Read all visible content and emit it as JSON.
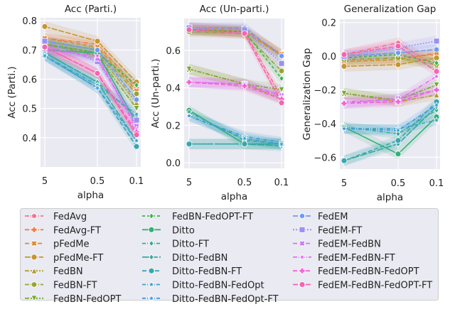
{
  "chart_data": [
    {
      "type": "line",
      "title": "Acc (Parti.)",
      "xlabel": "alpha",
      "ylabel": "Acc (Parti.)",
      "x": [
        5,
        0.5,
        0.1
      ],
      "x_scale": "log-reversed",
      "ylim": [
        0.3,
        0.81
      ],
      "yticks": [
        0.4,
        0.5,
        0.6,
        0.7,
        0.8
      ],
      "grid": true,
      "values": [
        [
          0.71,
          0.62,
          0.41
        ],
        [
          0.74,
          0.72,
          0.57
        ],
        [
          0.74,
          0.71,
          0.56
        ],
        [
          0.78,
          0.73,
          0.59
        ],
        [
          0.72,
          0.69,
          0.52
        ],
        [
          0.73,
          0.7,
          0.55
        ],
        [
          0.72,
          0.68,
          0.5
        ],
        [
          0.72,
          0.69,
          0.58
        ],
        [
          0.7,
          0.69,
          0.45
        ],
        [
          0.69,
          0.59,
          0.47
        ],
        [
          0.69,
          0.59,
          0.39
        ],
        [
          0.68,
          0.57,
          0.37
        ],
        [
          0.68,
          0.58,
          0.48
        ],
        [
          0.68,
          0.57,
          0.39
        ],
        [
          0.73,
          0.7,
          0.53
        ],
        [
          0.73,
          0.66,
          0.46
        ],
        [
          0.71,
          0.67,
          0.44
        ],
        [
          0.7,
          0.68,
          0.43
        ],
        [
          0.71,
          0.62,
          0.42
        ],
        [
          0.71,
          0.62,
          0.41
        ]
      ]
    },
    {
      "type": "line",
      "title": "Acc (Un-parti.)",
      "xlabel": "alpha",
      "ylabel": "Acc (Un-parti.)",
      "x": [
        5,
        0.5,
        0.1
      ],
      "x_scale": "log-reversed",
      "ylim": [
        -0.03,
        0.77
      ],
      "yticks": [
        0.0,
        0.2,
        0.4,
        0.6
      ],
      "grid": true,
      "values": [
        [
          0.72,
          0.7,
          0.35
        ],
        [
          0.72,
          0.71,
          0.58
        ],
        [
          0.71,
          0.7,
          0.58
        ],
        [
          0.71,
          0.7,
          0.57
        ],
        [
          0.5,
          0.42,
          0.34
        ],
        [
          0.7,
          0.69,
          0.49
        ],
        [
          0.5,
          0.42,
          0.39
        ],
        [
          0.71,
          0.7,
          0.45
        ],
        [
          0.28,
          0.1,
          0.1
        ],
        [
          0.27,
          0.12,
          0.1
        ],
        [
          0.1,
          0.1,
          0.09
        ],
        [
          0.1,
          0.1,
          0.1
        ],
        [
          0.25,
          0.14,
          0.11
        ],
        [
          0.25,
          0.13,
          0.1
        ],
        [
          0.72,
          0.72,
          0.57
        ],
        [
          0.72,
          0.71,
          0.53
        ],
        [
          0.43,
          0.42,
          0.36
        ],
        [
          0.43,
          0.42,
          0.35
        ],
        [
          0.43,
          0.41,
          0.34
        ],
        [
          0.71,
          0.69,
          0.32
        ]
      ]
    },
    {
      "type": "line",
      "title": "Generalization Gap",
      "xlabel": "alpha",
      "ylabel": "Generalization Gap",
      "x": [
        5,
        0.5,
        0.1
      ],
      "x_scale": "log-reversed",
      "ylim": [
        -0.67,
        0.22
      ],
      "yticks": [
        -0.6,
        -0.4,
        -0.2,
        0.0,
        0.2
      ],
      "grid": true,
      "values": [
        [
          0.01,
          0.08,
          -0.06
        ],
        [
          -0.02,
          -0.01,
          0.01
        ],
        [
          -0.03,
          -0.02,
          0.02
        ],
        [
          -0.06,
          -0.05,
          -0.01
        ],
        [
          -0.22,
          -0.27,
          -0.23
        ],
        [
          -0.02,
          -0.01,
          -0.05
        ],
        [
          -0.22,
          -0.26,
          -0.17
        ],
        [
          -0.01,
          0.01,
          -0.04
        ],
        [
          -0.42,
          -0.58,
          -0.36
        ],
        [
          -0.42,
          -0.46,
          -0.32
        ],
        [
          -0.62,
          -0.52,
          -0.3
        ],
        [
          -0.62,
          -0.5,
          -0.27
        ],
        [
          -0.43,
          -0.43,
          -0.38
        ],
        [
          -0.43,
          -0.44,
          -0.29
        ],
        [
          0.0,
          0.02,
          0.04
        ],
        [
          0.0,
          0.05,
          0.09
        ],
        [
          -0.28,
          -0.25,
          -0.2
        ],
        [
          -0.27,
          -0.26,
          -0.12
        ],
        [
          -0.28,
          -0.27,
          -0.2
        ],
        [
          0.01,
          0.06,
          -0.09
        ]
      ]
    }
  ],
  "x_tick_labels": [
    "5",
    "0.5",
    "0.1"
  ],
  "legend": {
    "placement": "bottom",
    "entries": [
      {
        "name": "FedAvg",
        "color": "#f77189",
        "marker": "pentagon",
        "dash": "6 2 1 2"
      },
      {
        "name": "FedAvg-FT",
        "color": "#f47a42",
        "marker": "plus",
        "dash": "6 2 1 2"
      },
      {
        "name": "pFedMe",
        "color": "#dc8932",
        "marker": "x",
        "dash": "6 3"
      },
      {
        "name": "pFedMe-FT",
        "color": "#c69532",
        "marker": "circle",
        "dash": "8 2"
      },
      {
        "name": "FedBN",
        "color": "#b29c31",
        "marker": "triangle-up",
        "dash": "6 2 2 2"
      },
      {
        "name": "FedBN-FT",
        "color": "#97a431",
        "marker": "octagon",
        "dash": "6 2 1 2"
      },
      {
        "name": "FedBN-FedOPT",
        "color": "#77ab31",
        "marker": "triangle-down",
        "dash": "6 2 2 2"
      },
      {
        "name": "FedBN-FedOPT-FT",
        "color": "#3db34a",
        "marker": "diamond",
        "dash": "4 3"
      },
      {
        "name": "Ditto",
        "color": "#33b07a",
        "marker": "circle",
        "dash": ""
      },
      {
        "name": "Ditto-FT",
        "color": "#34ad90",
        "marker": "diamond",
        "dash": "5 2 1 2"
      },
      {
        "name": "Ditto-FedBN",
        "color": "#35aa9f",
        "marker": "diamond",
        "dash": "10 2"
      },
      {
        "name": "Ditto-FedBN-FT",
        "color": "#37a7b0",
        "marker": "circle",
        "dash": "6 3"
      },
      {
        "name": "Ditto-FedBN-FedOpt",
        "color": "#3aa2c4",
        "marker": "star",
        "dash": "5 2 1 2"
      },
      {
        "name": "Ditto-FedBN-FedOpt-FT",
        "color": "#3d9be1",
        "marker": "star",
        "dash": "5 2 1 2"
      },
      {
        "name": "FedEM",
        "color": "#6e9af4",
        "marker": "hexagon",
        "dash": "7 2"
      },
      {
        "name": "FedEM-FT",
        "color": "#9a91f4",
        "marker": "square",
        "dash": "2 2"
      },
      {
        "name": "FedEM-FedBN",
        "color": "#c67ef4",
        "marker": "x",
        "dash": "6 3"
      },
      {
        "name": "FedEM-FedBN-FT",
        "color": "#e36cf0",
        "marker": "star",
        "dash": "6 2 1 2"
      },
      {
        "name": "FedEM-FedBN-FedOPT",
        "color": "#f461d8",
        "marker": "plus",
        "dash": "6 3"
      },
      {
        "name": "FedEM-FedBN-FedOPT-FT",
        "color": "#f565b0",
        "marker": "circle",
        "dash": "7 2"
      }
    ]
  }
}
